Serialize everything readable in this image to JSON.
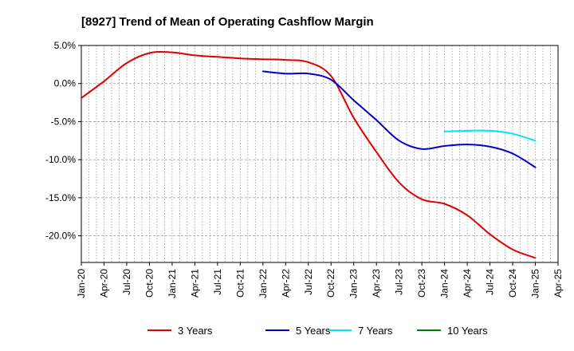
{
  "chart_data": {
    "type": "line",
    "title": "[8927]  Trend of Mean of Operating Cashflow Margin",
    "xlabel": "",
    "ylabel": "",
    "ylim": [
      -23.5,
      5.0
    ],
    "yticks": [
      5.0,
      0.0,
      -5.0,
      -10.0,
      -15.0,
      -20.0
    ],
    "ytick_labels": [
      "5.0%",
      "0.0%",
      "-5.0%",
      "-10.0%",
      "-15.0%",
      "-20.0%"
    ],
    "xticks": [
      "Jan-20",
      "Apr-20",
      "Jul-20",
      "Oct-20",
      "Jan-21",
      "Apr-21",
      "Jul-21",
      "Oct-21",
      "Jan-22",
      "Apr-22",
      "Jul-22",
      "Oct-22",
      "Jan-23",
      "Apr-23",
      "Jul-23",
      "Oct-23",
      "Jan-24",
      "Apr-24",
      "Jul-24",
      "Oct-24",
      "Jan-25",
      "Apr-25"
    ],
    "grid": true,
    "legend_position": "bottom",
    "series": [
      {
        "name": "3 Years",
        "color": "#e00000",
        "points": [
          [
            "Jan-20",
            -1.9
          ],
          [
            "Apr-20",
            0.3
          ],
          [
            "Jul-20",
            2.7
          ],
          [
            "Oct-20",
            4.0
          ],
          [
            "Jan-21",
            4.1
          ],
          [
            "Apr-21",
            3.7
          ],
          [
            "Jul-21",
            3.5
          ],
          [
            "Oct-21",
            3.3
          ],
          [
            "Jan-22",
            3.2
          ],
          [
            "Apr-22",
            3.1
          ],
          [
            "Jul-22",
            2.8
          ],
          [
            "Oct-22",
            1.0
          ],
          [
            "Jan-23",
            -4.5
          ],
          [
            "Apr-23",
            -9.0
          ],
          [
            "Jul-23",
            -13.0
          ],
          [
            "Oct-23",
            -15.2
          ],
          [
            "Jan-24",
            -15.8
          ],
          [
            "Apr-24",
            -17.3
          ],
          [
            "Jul-24",
            -19.8
          ],
          [
            "Oct-24",
            -21.8
          ],
          [
            "Jan-25",
            -22.9
          ]
        ]
      },
      {
        "name": "5 Years",
        "color": "#0000cc",
        "points": [
          [
            "Jan-22",
            1.6
          ],
          [
            "Apr-22",
            1.3
          ],
          [
            "Jul-22",
            1.3
          ],
          [
            "Oct-22",
            0.5
          ],
          [
            "Jan-23",
            -2.2
          ],
          [
            "Apr-23",
            -4.8
          ],
          [
            "Jul-23",
            -7.5
          ],
          [
            "Oct-23",
            -8.6
          ],
          [
            "Jan-24",
            -8.2
          ],
          [
            "Apr-24",
            -8.0
          ],
          [
            "Jul-24",
            -8.3
          ],
          [
            "Oct-24",
            -9.2
          ],
          [
            "Jan-25",
            -11.0
          ]
        ]
      },
      {
        "name": "7 Years",
        "color": "#00e5ee",
        "points": [
          [
            "Jan-24",
            -6.3
          ],
          [
            "Apr-24",
            -6.2
          ],
          [
            "Jul-24",
            -6.2
          ],
          [
            "Oct-24",
            -6.6
          ],
          [
            "Jan-25",
            -7.5
          ]
        ]
      },
      {
        "name": "10 Years",
        "color": "#008000",
        "points": []
      }
    ]
  }
}
